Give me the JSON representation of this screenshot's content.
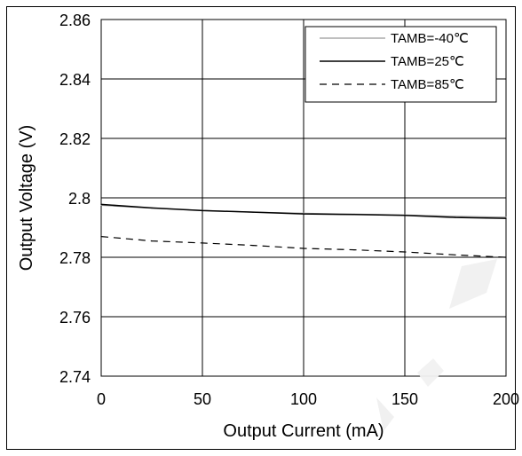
{
  "chart_data": {
    "type": "line",
    "xlabel": "Output Current (mA)",
    "ylabel": "Output Voltage (V)",
    "xlim": [
      0,
      200
    ],
    "ylim": [
      2.74,
      2.86
    ],
    "x_ticks": [
      "0",
      "50",
      "100",
      "150",
      "200"
    ],
    "y_ticks": [
      "2.74",
      "2.76",
      "2.78",
      "2.8",
      "2.82",
      "2.84",
      "2.86"
    ],
    "grid": true,
    "legend_position": "top-right",
    "series": [
      {
        "name": "TAMB=-40℃",
        "style": "solid-thin",
        "color": "#999999",
        "x": [
          0,
          25,
          50,
          75,
          100,
          125,
          150,
          175,
          200
        ],
        "y": [
          2.7975,
          2.7965,
          2.7958,
          2.7952,
          2.7948,
          2.7945,
          2.7942,
          2.7938,
          2.7935
        ]
      },
      {
        "name": "TAMB=25℃",
        "style": "solid",
        "color": "#000000",
        "x": [
          0,
          25,
          50,
          75,
          100,
          125,
          150,
          175,
          200
        ],
        "y": [
          2.7978,
          2.7966,
          2.7957,
          2.7952,
          2.7946,
          2.7944,
          2.7941,
          2.7934,
          2.7931
        ]
      },
      {
        "name": "TAMB=85℃",
        "style": "dashed",
        "color": "#000000",
        "x": [
          0,
          25,
          50,
          75,
          100,
          125,
          150,
          175,
          200
        ],
        "y": [
          2.787,
          2.7855,
          2.7848,
          2.784,
          2.783,
          2.7825,
          2.7818,
          2.7808,
          2.78
        ]
      }
    ]
  }
}
